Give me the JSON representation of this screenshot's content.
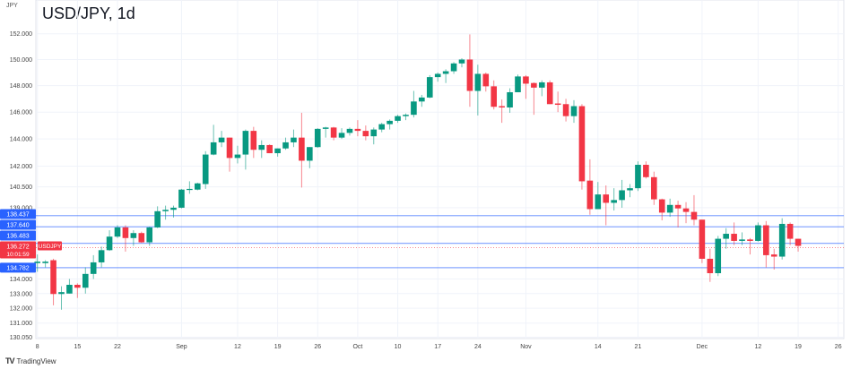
{
  "chart_data": {
    "type": "candlestick",
    "title": "USD/JPY, 1d",
    "yunit": "JPY",
    "yscale": "log",
    "ylim": [
      130.05,
      152.0
    ],
    "yticks": [
      "152.000",
      "150.000",
      "148.000",
      "146.000",
      "144.000",
      "142.000",
      "140.500",
      "139.000",
      "134.000",
      "133.000",
      "132.000",
      "131.000",
      "130.050"
    ],
    "xticks": [
      {
        "label": "8",
        "index": 0
      },
      {
        "label": "15",
        "index": 5
      },
      {
        "label": "22",
        "index": 10
      },
      {
        "label": "Sep",
        "index": 18
      },
      {
        "label": "12",
        "index": 25
      },
      {
        "label": "19",
        "index": 30
      },
      {
        "label": "26",
        "index": 35
      },
      {
        "label": "Oct",
        "index": 40
      },
      {
        "label": "10",
        "index": 45
      },
      {
        "label": "17",
        "index": 50
      },
      {
        "label": "24",
        "index": 55
      },
      {
        "label": "Nov",
        "index": 61
      },
      {
        "label": "14",
        "index": 70
      },
      {
        "label": "21",
        "index": 75
      },
      {
        "label": "Dec",
        "index": 83
      },
      {
        "label": "12",
        "index": 90
      },
      {
        "label": "19",
        "index": 95
      },
      {
        "label": "26",
        "index": 100
      }
    ],
    "grid": true,
    "colors": {
      "up": "#089981",
      "down": "#f23645",
      "level": "#2962ff",
      "last": "#f23645"
    },
    "ohlc": [
      [
        135.1,
        135.7,
        134.5,
        135.2
      ],
      [
        135.1,
        135.3,
        134.8,
        135.2
      ],
      [
        135.3,
        135.4,
        132.2,
        132.97
      ],
      [
        132.97,
        133.5,
        131.9,
        133.1
      ],
      [
        133.0,
        134.0,
        133.0,
        133.6
      ],
      [
        133.6,
        133.7,
        132.7,
        133.4
      ],
      [
        133.4,
        134.8,
        133.0,
        134.35
      ],
      [
        134.35,
        135.65,
        134.0,
        135.15
      ],
      [
        135.15,
        136.25,
        134.8,
        136.0
      ],
      [
        136.0,
        137.4,
        135.95,
        136.95
      ],
      [
        136.95,
        137.75,
        136.85,
        137.6
      ],
      [
        137.6,
        137.75,
        135.9,
        136.85
      ],
      [
        136.85,
        137.4,
        136.3,
        137.2
      ],
      [
        137.2,
        137.3,
        136.5,
        136.55
      ],
      [
        136.55,
        137.65,
        136.3,
        137.6
      ],
      [
        137.6,
        139.1,
        137.55,
        138.75
      ],
      [
        138.75,
        139.15,
        138.15,
        138.85
      ],
      [
        138.85,
        139.15,
        138.3,
        139.0
      ],
      [
        139.0,
        140.35,
        138.95,
        140.3
      ],
      [
        140.3,
        140.9,
        140.0,
        140.35
      ],
      [
        140.3,
        140.8,
        140.25,
        140.75
      ],
      [
        140.7,
        143.1,
        140.35,
        142.85
      ],
      [
        142.85,
        145.05,
        142.8,
        143.75
      ],
      [
        143.75,
        144.6,
        143.4,
        144.1
      ],
      [
        144.1,
        144.1,
        141.6,
        142.6
      ],
      [
        142.6,
        143.5,
        142.2,
        142.85
      ],
      [
        142.85,
        144.7,
        141.75,
        144.6
      ],
      [
        144.6,
        144.9,
        142.6,
        143.2
      ],
      [
        143.2,
        143.9,
        142.6,
        143.55
      ],
      [
        143.55,
        143.6,
        142.95,
        142.95
      ],
      [
        142.95,
        143.3,
        142.7,
        143.3
      ],
      [
        143.3,
        144.1,
        143.2,
        143.75
      ],
      [
        143.75,
        144.7,
        143.4,
        144.1
      ],
      [
        144.1,
        145.95,
        140.45,
        142.4
      ],
      [
        142.4,
        143.4,
        141.85,
        143.4
      ],
      [
        143.4,
        144.8,
        143.35,
        144.75
      ],
      [
        144.75,
        144.9,
        144.1,
        144.85
      ],
      [
        144.85,
        144.9,
        143.9,
        144.1
      ],
      [
        144.1,
        144.8,
        144.0,
        144.45
      ],
      [
        144.45,
        144.85,
        144.25,
        144.75
      ],
      [
        144.75,
        145.4,
        144.2,
        144.6
      ],
      [
        144.6,
        145.0,
        143.9,
        144.2
      ],
      [
        144.2,
        144.85,
        143.6,
        144.7
      ],
      [
        144.7,
        145.2,
        144.5,
        145.1
      ],
      [
        145.1,
        145.45,
        144.7,
        145.35
      ],
      [
        145.35,
        145.8,
        145.2,
        145.7
      ],
      [
        145.7,
        145.9,
        145.4,
        145.8
      ],
      [
        145.8,
        147.6,
        145.6,
        146.8
      ],
      [
        146.8,
        147.3,
        146.4,
        147.1
      ],
      [
        147.1,
        148.8,
        147.05,
        148.65
      ],
      [
        148.65,
        149.0,
        148.3,
        148.9
      ],
      [
        148.9,
        149.25,
        148.2,
        149.1
      ],
      [
        149.1,
        149.8,
        148.9,
        149.7
      ],
      [
        149.7,
        150.1,
        149.4,
        150.0
      ],
      [
        150.0,
        151.95,
        146.4,
        147.6
      ],
      [
        147.6,
        149.6,
        145.75,
        148.9
      ],
      [
        148.9,
        149.0,
        147.55,
        147.95
      ],
      [
        147.95,
        148.4,
        146.2,
        146.4
      ],
      [
        146.45,
        146.95,
        145.2,
        146.35
      ],
      [
        146.35,
        147.8,
        145.95,
        147.5
      ],
      [
        147.5,
        148.85,
        147.5,
        148.7
      ],
      [
        148.7,
        148.8,
        147.0,
        148.15
      ],
      [
        148.2,
        148.25,
        145.8,
        147.85
      ],
      [
        147.85,
        148.4,
        147.2,
        148.25
      ],
      [
        148.25,
        148.4,
        146.6,
        146.6
      ],
      [
        146.65,
        147.55,
        146.0,
        146.55
      ],
      [
        146.6,
        147.0,
        145.3,
        145.7
      ],
      [
        145.7,
        146.9,
        145.2,
        146.45
      ],
      [
        146.45,
        146.6,
        140.3,
        140.9
      ],
      [
        140.95,
        142.5,
        138.5,
        138.9
      ],
      [
        138.9,
        140.85,
        138.9,
        139.95
      ],
      [
        139.95,
        140.6,
        137.75,
        139.35
      ],
      [
        139.35,
        140.4,
        138.8,
        139.55
      ],
      [
        139.55,
        141.0,
        139.0,
        140.25
      ],
      [
        140.25,
        140.7,
        139.75,
        140.4
      ],
      [
        140.4,
        142.35,
        140.2,
        142.1
      ],
      [
        142.1,
        142.35,
        141.1,
        141.2
      ],
      [
        141.2,
        141.6,
        139.2,
        139.6
      ],
      [
        139.6,
        139.65,
        138.1,
        138.65
      ],
      [
        138.65,
        139.65,
        138.35,
        139.2
      ],
      [
        139.2,
        139.5,
        137.6,
        138.95
      ],
      [
        138.95,
        139.4,
        137.9,
        138.7
      ],
      [
        138.7,
        139.9,
        137.75,
        138.15
      ],
      [
        138.15,
        138.15,
        135.1,
        135.4
      ],
      [
        135.4,
        136.1,
        133.8,
        134.4
      ],
      [
        134.4,
        137.0,
        134.2,
        136.8
      ],
      [
        136.8,
        137.55,
        136.1,
        137.15
      ],
      [
        137.15,
        137.95,
        136.35,
        136.65
      ],
      [
        136.65,
        137.25,
        136.35,
        136.75
      ],
      [
        136.75,
        136.85,
        135.7,
        136.65
      ],
      [
        136.65,
        137.95,
        136.6,
        137.75
      ],
      [
        137.75,
        138.05,
        134.8,
        135.65
      ],
      [
        135.7,
        136.1,
        134.65,
        135.55
      ],
      [
        135.55,
        138.25,
        135.35,
        137.85
      ],
      [
        137.85,
        137.95,
        136.35,
        136.8
      ],
      [
        136.8,
        136.8,
        135.9,
        136.3
      ]
    ],
    "levels": [
      "138.437",
      "137.640",
      "136.483",
      "134.782"
    ],
    "last_price": {
      "value": "136.272",
      "symbol": "USDJPY",
      "countdown": "10:01:59"
    }
  },
  "footer": {
    "brand": "TradingView"
  }
}
